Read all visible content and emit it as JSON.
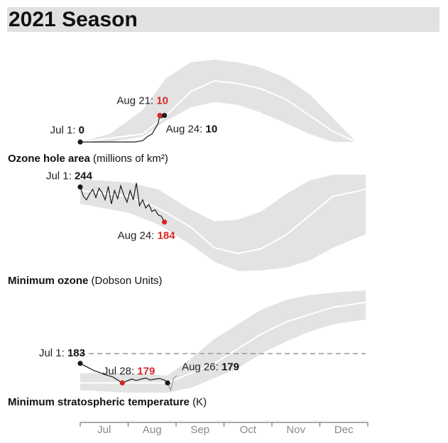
{
  "page_title": "2021 Season",
  "colors": {
    "band": "#e3e3e3",
    "median": "#ffffff",
    "line": "#1a1a1a",
    "highlight": "#d62728",
    "threshold": "#999999"
  },
  "chart_data": [
    {
      "type": "area",
      "panel": "ozone-hole-area",
      "label_bold": "Ozone hole area",
      "label_unit": "(millions of km²)",
      "x_range": [
        "Jul 1",
        "Dec 31"
      ],
      "y_range": [
        0,
        35
      ],
      "band": {
        "x": [
          "Jul 1",
          "Jul 20",
          "Aug 10",
          "Aug 25",
          "Sep 10",
          "Sep 25",
          "Oct 10",
          "Oct 25",
          "Nov 10",
          "Nov 25",
          "Dec 10",
          "Dec 25"
        ],
        "upper": [
          0,
          3,
          12,
          24,
          30,
          31,
          30,
          28,
          24,
          18,
          9,
          0
        ],
        "lower": [
          0,
          0,
          2,
          8,
          13,
          15,
          14,
          11,
          7,
          3,
          0,
          0
        ]
      },
      "median": {
        "x": [
          "Jul 1",
          "Aug 10",
          "Aug 25",
          "Sep 10",
          "Sep 25",
          "Oct 10",
          "Oct 25",
          "Nov 10",
          "Nov 25",
          "Dec 10",
          "Dec 25"
        ],
        "y": [
          0,
          3,
          10,
          19,
          23,
          22,
          20,
          16,
          10,
          4,
          0
        ]
      },
      "series": [
        {
          "x": [
            "Jul 1",
            "Jul 10",
            "Jul 20",
            "Jul 30",
            "Aug 5",
            "Aug 10",
            "Aug 13",
            "Aug 16",
            "Aug 18",
            "Aug 20",
            "Aug 21",
            "Aug 22",
            "Aug 24"
          ],
          "y": [
            0,
            0,
            0,
            0,
            0,
            0.5,
            2,
            3,
            5,
            7,
            10,
            9,
            10
          ]
        }
      ],
      "annotations": [
        {
          "date": "Jul 1",
          "prefix": "Jul 1: ",
          "value": "0",
          "style": "black"
        },
        {
          "date": "Aug 21",
          "prefix": "Aug 21: ",
          "value": "10",
          "style": "red"
        },
        {
          "date": "Aug 24",
          "prefix": "Aug 24: ",
          "value": "10",
          "style": "black"
        }
      ]
    },
    {
      "type": "area",
      "panel": "minimum-ozone",
      "label_bold": "Minimum ozone",
      "label_unit": "(Dobson Units)",
      "x_range": [
        "Jul 1",
        "Dec 31"
      ],
      "y_range": [
        90,
        270
      ],
      "band": {
        "x": [
          "Jul 1",
          "Aug 1",
          "Aug 20",
          "Sep 10",
          "Sep 25",
          "Oct 10",
          "Oct 25",
          "Nov 10",
          "Nov 25",
          "Dec 10",
          "Dec 31"
        ],
        "upper": [
          257,
          252,
          240,
          205,
          185,
          188,
          202,
          232,
          255,
          265,
          265
        ],
        "lower": [
          215,
          200,
          180,
          145,
          116,
          100,
          101,
          106,
          118,
          140,
          163
        ]
      },
      "median": {
        "x": [
          "Jul 1",
          "Aug 1",
          "Aug 20",
          "Sep 10",
          "Sep 25",
          "Oct 10",
          "Oct 25",
          "Nov 10",
          "Nov 25",
          "Dec 10",
          "Dec 31"
        ],
        "y": [
          238,
          228,
          208,
          175,
          140,
          130,
          138,
          162,
          195,
          228,
          240
        ]
      },
      "series": [
        {
          "x": [
            "Jul 1",
            "Jul 3",
            "Jul 5",
            "Jul 7",
            "Jul 9",
            "Jul 11",
            "Jul 13",
            "Jul 15",
            "Jul 17",
            "Jul 19",
            "Jul 21",
            "Jul 23",
            "Jul 25",
            "Jul 27",
            "Jul 29",
            "Jul 31",
            "Aug 2",
            "Aug 4",
            "Aug 6",
            "Aug 8",
            "Aug 10",
            "Aug 12",
            "Aug 14",
            "Aug 16",
            "Aug 18",
            "Aug 20",
            "Aug 22",
            "Aug 24"
          ],
          "y": [
            244,
            228,
            222,
            232,
            240,
            226,
            242,
            234,
            222,
            245,
            215,
            238,
            224,
            246,
            230,
            218,
            238,
            222,
            251,
            212,
            222,
            208,
            214,
            202,
            205,
            196,
            194,
            184
          ]
        }
      ],
      "annotations": [
        {
          "date": "Jul 1",
          "prefix": "Jul 1: ",
          "value": "244",
          "style": "black"
        },
        {
          "date": "Aug 24",
          "prefix": "Aug 24: ",
          "value": "184",
          "style": "red"
        }
      ]
    },
    {
      "type": "area",
      "panel": "minimum-stratospheric-temperature",
      "label_bold": "Minimum stratospheric temperature",
      "label_unit": "(K)",
      "x_range": [
        "Jul 1",
        "Dec 31"
      ],
      "y_range": [
        176,
        200
      ],
      "reference_line": {
        "value": 185,
        "style": "dashed"
      },
      "band": {
        "x": [
          "Jul 1",
          "Aug 1",
          "Aug 26",
          "Sep 10",
          "Sep 25",
          "Oct 10",
          "Oct 25",
          "Nov 10",
          "Nov 25",
          "Dec 10",
          "Dec 31"
        ],
        "upper": [
          181,
          181,
          180.5,
          184,
          188,
          191,
          194,
          196,
          197,
          197.5,
          198
        ],
        "lower": [
          177.5,
          177,
          177,
          178,
          180,
          182,
          185,
          187.5,
          189.5,
          191,
          192
        ]
      },
      "median": {
        "x": [
          "Jul 1",
          "Aug 1",
          "Aug 26",
          "Sep 10",
          "Sep 25",
          "Oct 10",
          "Oct 25",
          "Nov 10",
          "Nov 25",
          "Dec 10",
          "Dec 31"
        ],
        "y": [
          179,
          179,
          179,
          181,
          183,
          186,
          189,
          191.5,
          193,
          194.5,
          195.5
        ]
      },
      "series": [
        {
          "x": [
            "Jul 1",
            "Jul 4",
            "Jul 7",
            "Jul 10",
            "Jul 13",
            "Jul 16",
            "Jul 19",
            "Jul 22",
            "Jul 25",
            "Jul 28",
            "Jul 31",
            "Aug 3",
            "Aug 6",
            "Aug 9",
            "Aug 12",
            "Aug 15",
            "Aug 18",
            "Aug 21",
            "Aug 24",
            "Aug 26"
          ],
          "y": [
            183,
            182.5,
            182,
            181.5,
            181.2,
            180.8,
            180.5,
            180.2,
            179.6,
            179,
            179.4,
            179.8,
            179.5,
            179.8,
            180,
            179.6,
            179.8,
            179.9,
            179.6,
            179
          ]
        }
      ],
      "extension": {
        "x": [
          "Aug 26",
          "Aug 28",
          "Aug 30",
          "Sep 1"
        ],
        "y": [
          179,
          177.5,
          180,
          180.5
        ]
      },
      "annotations": [
        {
          "date": "Jul 1",
          "prefix": "Jul 1: ",
          "value": "183",
          "style": "black"
        },
        {
          "date": "Jul 28",
          "prefix": "Jul 28: ",
          "value": "179",
          "style": "red"
        },
        {
          "date": "Aug 26",
          "prefix": "Aug 26: ",
          "value": "179",
          "style": "black"
        }
      ]
    }
  ],
  "x_axis": {
    "months": [
      "Jul",
      "Aug",
      "Sep",
      "Oct",
      "Nov",
      "Dec"
    ]
  }
}
